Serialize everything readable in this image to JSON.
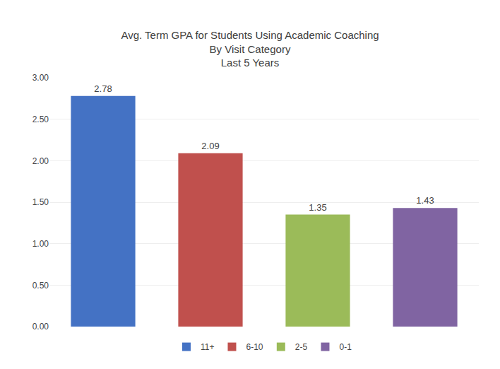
{
  "chart_data": {
    "type": "bar",
    "title": "Avg. Term GPA for Students Using Academic Coaching\nBy Visit Category\nLast 5 Years",
    "categories": [
      "11+",
      "6-10",
      "2-5",
      "0-1"
    ],
    "values": [
      2.78,
      2.09,
      1.35,
      1.43
    ],
    "colors": [
      "#4472C4",
      "#C0504D",
      "#9BBB59",
      "#8064A2"
    ],
    "ylim": [
      0.0,
      3.0
    ],
    "yticks": [
      {
        "value": 0.0,
        "label": "0.00"
      },
      {
        "value": 0.5,
        "label": "0.50"
      },
      {
        "value": 1.0,
        "label": "1.00"
      },
      {
        "value": 1.5,
        "label": "1.50"
      },
      {
        "value": 2.0,
        "label": "2.00"
      },
      {
        "value": 2.5,
        "label": "2.50"
      },
      {
        "value": 3.0,
        "label": "3.00"
      }
    ],
    "grid": true,
    "legend": "bottom",
    "data_labels": true,
    "tick_labels": "y"
  }
}
